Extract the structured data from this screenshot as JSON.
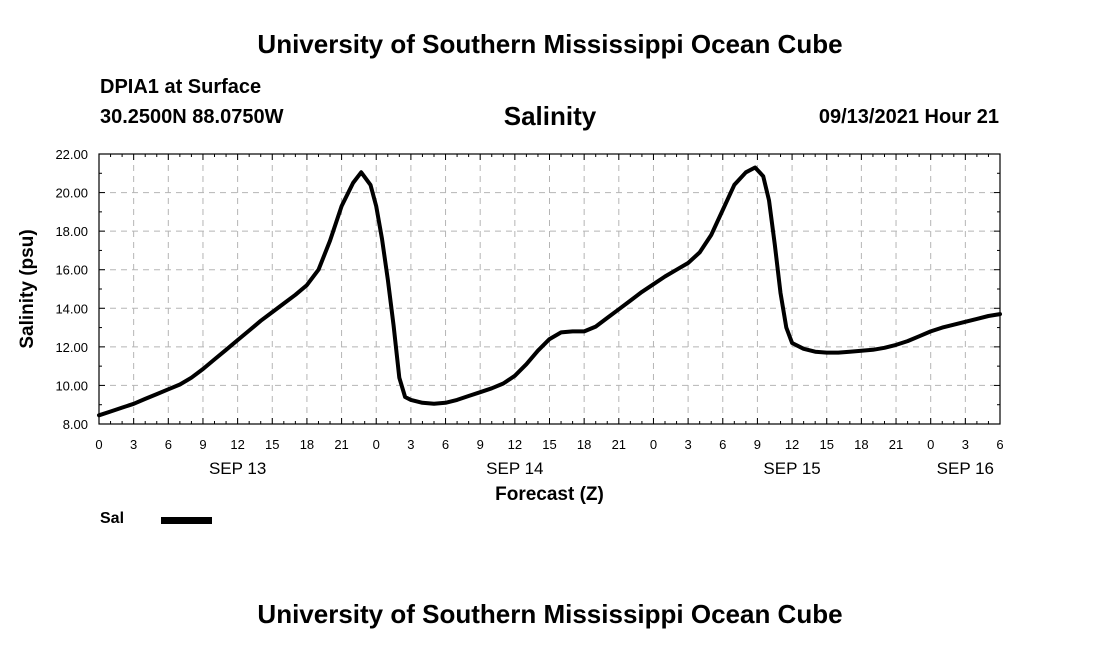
{
  "header": {
    "title": "University of Southern Mississippi Ocean Cube",
    "station": "DPIA1 at Surface",
    "coordinates": "30.2500N  88.0750W",
    "variable": "Salinity",
    "datetime": "09/13/2021 Hour 21"
  },
  "footer": {
    "title": "University of Southern Mississippi Ocean Cube"
  },
  "chart_data": {
    "type": "line",
    "title": "Salinity",
    "xlabel": "Forecast (Z)",
    "ylabel": "Salinity (psu)",
    "ylim": [
      8,
      22
    ],
    "xlim": [
      0,
      78
    ],
    "x_unit": "hours from SEP 13 00Z",
    "y_ticks": [
      "8.00",
      "10.00",
      "12.00",
      "14.00",
      "16.00",
      "18.00",
      "20.00",
      "22.00"
    ],
    "y_tick_values": [
      8,
      10,
      12,
      14,
      16,
      18,
      20,
      22
    ],
    "x_ticks": [
      {
        "h": 0,
        "label": "0"
      },
      {
        "h": 3,
        "label": "3"
      },
      {
        "h": 6,
        "label": "6"
      },
      {
        "h": 9,
        "label": "9"
      },
      {
        "h": 12,
        "label": "12"
      },
      {
        "h": 15,
        "label": "15"
      },
      {
        "h": 18,
        "label": "18"
      },
      {
        "h": 21,
        "label": "21"
      },
      {
        "h": 24,
        "label": "0"
      },
      {
        "h": 27,
        "label": "3"
      },
      {
        "h": 30,
        "label": "6"
      },
      {
        "h": 33,
        "label": "9"
      },
      {
        "h": 36,
        "label": "12"
      },
      {
        "h": 39,
        "label": "15"
      },
      {
        "h": 42,
        "label": "18"
      },
      {
        "h": 45,
        "label": "21"
      },
      {
        "h": 48,
        "label": "0"
      },
      {
        "h": 51,
        "label": "3"
      },
      {
        "h": 54,
        "label": "6"
      },
      {
        "h": 57,
        "label": "9"
      },
      {
        "h": 60,
        "label": "12"
      },
      {
        "h": 63,
        "label": "15"
      },
      {
        "h": 66,
        "label": "18"
      },
      {
        "h": 69,
        "label": "21"
      },
      {
        "h": 72,
        "label": "0"
      },
      {
        "h": 75,
        "label": "3"
      },
      {
        "h": 78,
        "label": "6"
      }
    ],
    "day_labels": [
      {
        "h": 12,
        "label": "SEP 13"
      },
      {
        "h": 36,
        "label": "SEP 14"
      },
      {
        "h": 60,
        "label": "SEP 15"
      },
      {
        "h": 75,
        "label": "SEP 16"
      }
    ],
    "grid": true,
    "legend": {
      "position": "bottom-left",
      "entries": [
        {
          "name": "Sal",
          "color": "#000000"
        }
      ]
    },
    "series": [
      {
        "name": "Sal",
        "color": "#000000",
        "x": [
          0,
          1,
          2,
          3,
          4,
          5,
          6,
          7,
          8,
          9,
          10,
          11,
          12,
          13,
          14,
          15,
          16,
          17,
          18,
          19,
          20,
          21,
          22,
          22.7,
          23.5,
          24,
          24.5,
          25,
          25.5,
          26,
          26.5,
          27,
          28,
          29,
          30,
          31,
          32,
          33,
          34,
          35,
          36,
          37,
          38,
          39,
          40,
          41,
          42,
          43,
          44,
          45,
          46,
          47,
          48,
          49,
          50,
          51,
          52,
          53,
          54,
          55,
          56,
          56.8,
          57.5,
          58,
          58.5,
          59,
          59.5,
          60,
          60.5,
          61,
          62,
          63,
          64,
          65,
          66,
          67,
          68,
          69,
          70,
          71,
          72,
          73,
          74,
          75,
          76,
          77,
          78
        ],
        "y": [
          8.45,
          8.65,
          8.85,
          9.05,
          9.3,
          9.55,
          9.8,
          10.05,
          10.4,
          10.85,
          11.35,
          11.85,
          12.35,
          12.85,
          13.35,
          13.8,
          14.25,
          14.7,
          15.2,
          16.0,
          17.5,
          19.3,
          20.5,
          21.05,
          20.4,
          19.3,
          17.6,
          15.5,
          13.1,
          10.4,
          9.4,
          9.25,
          9.1,
          9.05,
          9.1,
          9.25,
          9.45,
          9.65,
          9.85,
          10.1,
          10.5,
          11.1,
          11.8,
          12.4,
          12.75,
          12.8,
          12.8,
          13.05,
          13.5,
          13.95,
          14.4,
          14.85,
          15.25,
          15.65,
          16.0,
          16.35,
          16.9,
          17.8,
          19.1,
          20.4,
          21.05,
          21.3,
          20.85,
          19.6,
          17.3,
          14.8,
          13.0,
          12.2,
          12.05,
          11.9,
          11.75,
          11.7,
          11.7,
          11.75,
          11.8,
          11.85,
          11.95,
          12.1,
          12.3,
          12.55,
          12.8,
          13.0,
          13.15,
          13.3,
          13.45,
          13.6,
          13.7
        ]
      }
    ]
  }
}
